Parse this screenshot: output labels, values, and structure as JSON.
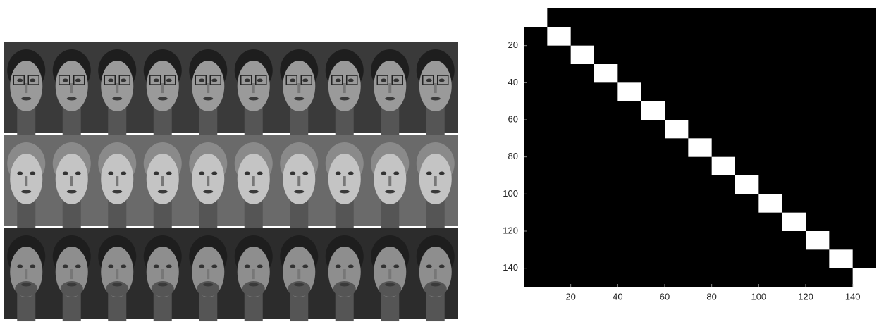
{
  "chart_data": {
    "type": "matrix",
    "xlim": [
      0,
      150
    ],
    "ylim": [
      0,
      150
    ],
    "xticks": [
      20,
      40,
      60,
      80,
      100,
      120,
      140
    ],
    "yticks": [
      20,
      40,
      60,
      80,
      100,
      120,
      140
    ],
    "block_edges": [
      0,
      10,
      20,
      30,
      40,
      50,
      60,
      70,
      80,
      90,
      100,
      110,
      120,
      130,
      140,
      150
    ],
    "background": "#000000",
    "color": "#ffffff"
  }
}
